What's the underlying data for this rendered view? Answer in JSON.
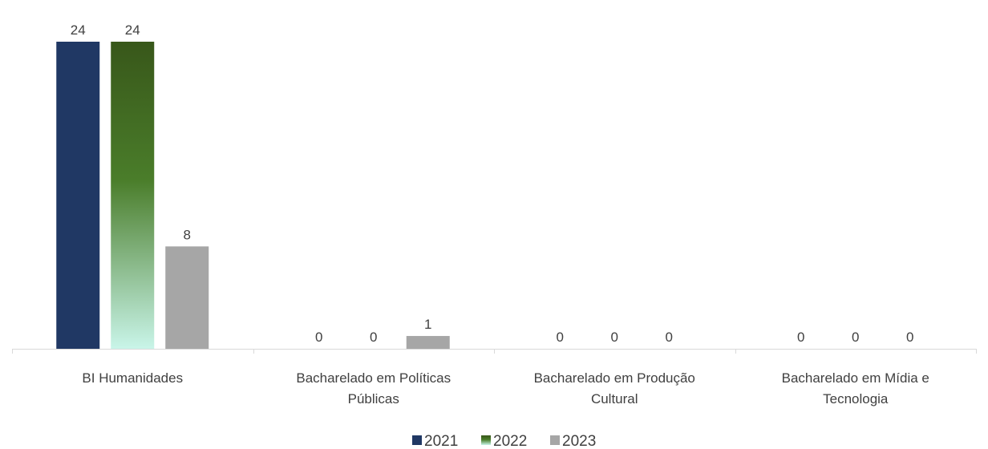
{
  "chart_data": {
    "type": "bar",
    "title": "",
    "xlabel": "",
    "ylabel": "",
    "ylim": [
      0,
      24
    ],
    "grid": false,
    "legend_position": "bottom",
    "categories": [
      [
        "BI Humanidades"
      ],
      [
        "Bacharelado em Políticas",
        "Públicas"
      ],
      [
        "Bacharelado em Produção",
        "Cultural"
      ],
      [
        "Bacharelado em Mídia e",
        "Tecnologia"
      ]
    ],
    "series": [
      {
        "name": "2021",
        "values": [
          24,
          0,
          0,
          0
        ],
        "color": "#203864"
      },
      {
        "name": "2022",
        "values": [
          24,
          0,
          0,
          0
        ],
        "color": "#38571a",
        "color_end": "#c9f5e9",
        "fill": "gradient"
      },
      {
        "name": "2023",
        "values": [
          8,
          1,
          0,
          0
        ],
        "color": "#a6a6a6"
      }
    ]
  }
}
